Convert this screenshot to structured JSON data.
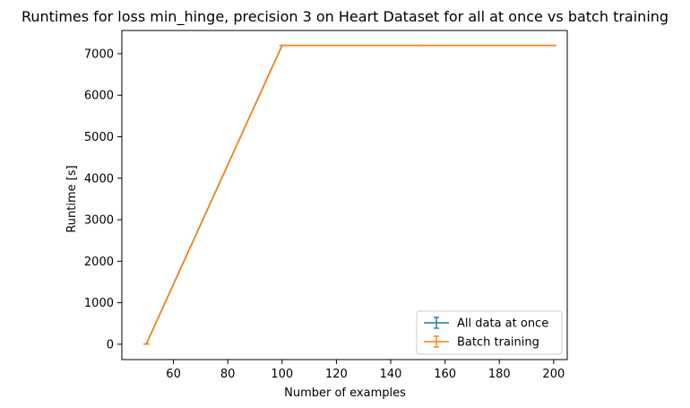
{
  "chart_data": {
    "type": "line",
    "title": "Runtimes for loss min_hinge, precision 3 on Heart Dataset for all at once vs batch training",
    "xlabel": "Number of examples",
    "ylabel": "Runtime [s]",
    "xlim": [
      41,
      205
    ],
    "ylim": [
      -370,
      7560
    ],
    "xticks": [
      60,
      80,
      100,
      120,
      140,
      160,
      180,
      200
    ],
    "yticks": [
      0,
      1000,
      2000,
      3000,
      4000,
      5000,
      6000,
      7000
    ],
    "grid": false,
    "legend_position": "lower right",
    "errorbars": true,
    "series": [
      {
        "name": "All data at once",
        "color": "#1f77b4",
        "x": [
          50,
          100,
          150,
          200
        ],
        "y": [
          5,
          7200,
          7200,
          7200
        ]
      },
      {
        "name": "Batch training",
        "color": "#ff7f0e",
        "x": [
          50,
          100,
          150,
          200
        ],
        "y": [
          5,
          7200,
          7200,
          7200
        ]
      }
    ]
  }
}
